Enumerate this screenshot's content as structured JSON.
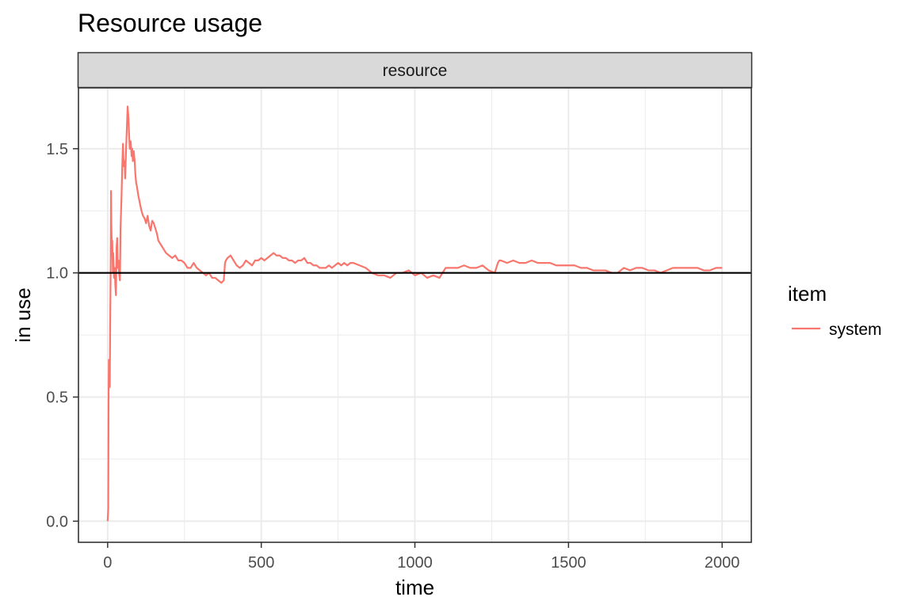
{
  "chart_data": {
    "type": "line",
    "title": "Resource usage",
    "facet_label": "resource",
    "xlabel": "time",
    "ylabel": "in use",
    "xlim": [
      -95,
      2095
    ],
    "ylim": [
      -0.085,
      1.745
    ],
    "x_ticks": [
      0,
      500,
      1000,
      1500,
      2000
    ],
    "x_tick_labels": [
      "0",
      "500",
      "1000",
      "1500",
      "2000"
    ],
    "y_ticks": [
      0.0,
      0.5,
      1.0,
      1.5
    ],
    "y_tick_labels": [
      "0.0",
      "0.5",
      "1.0",
      "1.5"
    ],
    "grid": true,
    "hline": {
      "y": 1.0,
      "color": "#000000"
    },
    "legend": {
      "title": "item",
      "position": "right"
    },
    "series": [
      {
        "name": "system",
        "color": "#F8766D",
        "x": [
          0,
          2,
          3,
          4,
          5,
          6,
          7,
          8,
          9,
          10,
          11,
          12,
          14,
          15,
          17,
          18,
          19,
          21,
          23,
          25,
          27,
          29,
          31,
          33,
          35,
          37,
          40,
          42,
          45,
          48,
          50,
          52,
          55,
          57,
          60,
          63,
          65,
          68,
          70,
          72,
          75,
          78,
          80,
          82,
          85,
          88,
          90,
          93,
          95,
          100,
          105,
          110,
          115,
          120,
          125,
          130,
          135,
          140,
          145,
          150,
          155,
          160,
          165,
          170,
          180,
          190,
          200,
          210,
          220,
          230,
          240,
          250,
          260,
          270,
          280,
          290,
          300,
          310,
          320,
          330,
          340,
          350,
          360,
          370,
          378,
          382,
          385,
          390,
          400,
          410,
          420,
          430,
          440,
          450,
          460,
          470,
          480,
          490,
          500,
          510,
          520,
          530,
          540,
          550,
          560,
          570,
          580,
          590,
          600,
          610,
          620,
          630,
          640,
          650,
          660,
          670,
          680,
          690,
          700,
          710,
          720,
          730,
          740,
          750,
          760,
          770,
          780,
          790,
          800,
          820,
          840,
          860,
          880,
          900,
          920,
          940,
          960,
          980,
          1000,
          1020,
          1040,
          1060,
          1080,
          1090,
          1100,
          1110,
          1120,
          1140,
          1160,
          1180,
          1200,
          1220,
          1240,
          1260,
          1270,
          1275,
          1280,
          1300,
          1320,
          1340,
          1360,
          1380,
          1400,
          1420,
          1440,
          1460,
          1480,
          1500,
          1520,
          1540,
          1560,
          1580,
          1600,
          1620,
          1640,
          1660,
          1680,
          1700,
          1720,
          1740,
          1760,
          1780,
          1800,
          1820,
          1840,
          1860,
          1880,
          1900,
          1920,
          1940,
          1960,
          1980,
          1990,
          2000
        ],
        "values": [
          0.0,
          0.05,
          0.48,
          0.65,
          0.55,
          0.6,
          0.54,
          0.75,
          0.9,
          1.05,
          1.33,
          1.2,
          1.08,
          1.13,
          1.0,
          1.08,
          1.05,
          0.98,
          1.02,
          0.95,
          0.91,
          1.1,
          1.14,
          1.02,
          1.05,
          1.0,
          0.97,
          1.18,
          1.3,
          1.45,
          1.52,
          1.43,
          1.45,
          1.38,
          1.5,
          1.6,
          1.67,
          1.62,
          1.55,
          1.5,
          1.53,
          1.47,
          1.5,
          1.45,
          1.49,
          1.45,
          1.4,
          1.36,
          1.35,
          1.31,
          1.28,
          1.25,
          1.23,
          1.22,
          1.2,
          1.23,
          1.19,
          1.17,
          1.21,
          1.2,
          1.18,
          1.16,
          1.13,
          1.12,
          1.1,
          1.08,
          1.07,
          1.06,
          1.07,
          1.05,
          1.05,
          1.04,
          1.02,
          1.02,
          1.04,
          1.02,
          1.01,
          1.0,
          0.99,
          1.0,
          0.98,
          0.98,
          0.97,
          0.96,
          0.97,
          1.04,
          1.05,
          1.06,
          1.07,
          1.05,
          1.03,
          1.02,
          1.03,
          1.05,
          1.04,
          1.03,
          1.05,
          1.05,
          1.06,
          1.05,
          1.06,
          1.07,
          1.08,
          1.07,
          1.07,
          1.06,
          1.06,
          1.05,
          1.05,
          1.04,
          1.05,
          1.05,
          1.06,
          1.04,
          1.04,
          1.03,
          1.03,
          1.02,
          1.02,
          1.02,
          1.03,
          1.02,
          1.03,
          1.04,
          1.03,
          1.04,
          1.03,
          1.04,
          1.04,
          1.03,
          1.02,
          1.0,
          0.99,
          0.99,
          0.98,
          1.0,
          1.0,
          1.01,
          0.99,
          1.0,
          0.98,
          0.99,
          0.98,
          1.0,
          1.02,
          1.02,
          1.02,
          1.02,
          1.03,
          1.02,
          1.02,
          1.03,
          1.01,
          1.0,
          1.04,
          1.05,
          1.05,
          1.04,
          1.05,
          1.04,
          1.04,
          1.05,
          1.04,
          1.04,
          1.04,
          1.03,
          1.03,
          1.03,
          1.03,
          1.02,
          1.02,
          1.01,
          1.01,
          1.01,
          1.0,
          1.0,
          1.02,
          1.01,
          1.02,
          1.02,
          1.01,
          1.01,
          1.0,
          1.01,
          1.02,
          1.02,
          1.02,
          1.02,
          1.02,
          1.01,
          1.01,
          1.02,
          1.02,
          1.02
        ]
      }
    ]
  }
}
